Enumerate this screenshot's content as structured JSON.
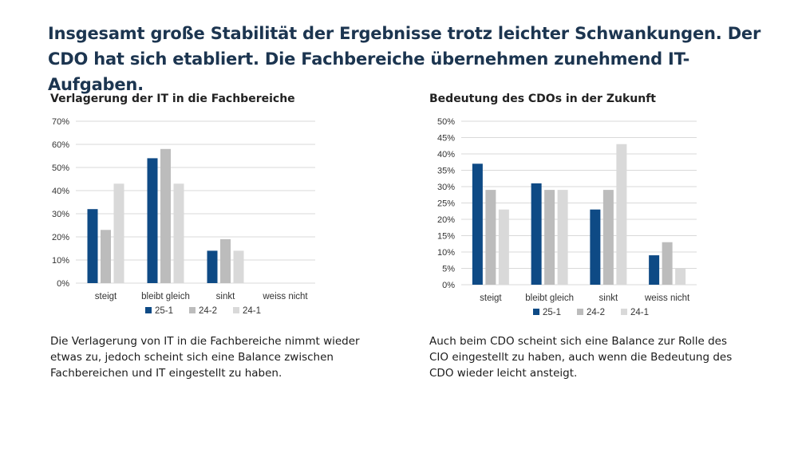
{
  "headline": "Insgesamt große Stabilität der Ergebnisse trotz leichter Schwankungen. Der CDO hat sich etabliert. Die Fachbereiche übernehmen zunehmend IT-Aufgaben.",
  "colors": {
    "25-1": "#0e4a85",
    "24-2": "#bcbcbc",
    "24-1": "#d9d9d9",
    "grid": "#d9d9d9",
    "title": "#1c3550"
  },
  "chart_data": [
    {
      "type": "bar",
      "title": "Verlagerung der IT in die Fachbereiche",
      "categories": [
        "steigt",
        "bleibt gleich",
        "sinkt",
        "weiss nicht"
      ],
      "series": [
        {
          "name": "25-1",
          "values": [
            32,
            54,
            14,
            0
          ]
        },
        {
          "name": "24-2",
          "values": [
            23,
            58,
            19,
            0
          ]
        },
        {
          "name": "24-1",
          "values": [
            43,
            43,
            14,
            0
          ]
        }
      ],
      "ylim": [
        0,
        70
      ],
      "yticks": [
        "0%",
        "10%",
        "20%",
        "30%",
        "40%",
        "50%",
        "60%",
        "70%"
      ],
      "grid": true,
      "legend": "bottom",
      "caption": "Die Verlagerung von IT in die Fachbereiche nimmt wieder etwas zu, jedoch scheint sich eine Balance zwischen Fachbereichen und IT eingestellt zu haben."
    },
    {
      "type": "bar",
      "title": "Bedeutung des CDOs in der Zukunft",
      "categories": [
        "steigt",
        "bleibt gleich",
        "sinkt",
        "weiss nicht"
      ],
      "series": [
        {
          "name": "25-1",
          "values": [
            37,
            31,
            23,
            9
          ]
        },
        {
          "name": "24-2",
          "values": [
            29,
            29,
            29,
            13
          ]
        },
        {
          "name": "24-1",
          "values": [
            23,
            29,
            43,
            5
          ]
        }
      ],
      "ylim": [
        0,
        50
      ],
      "yticks": [
        "0%",
        "5%",
        "10%",
        "15%",
        "20%",
        "25%",
        "30%",
        "35%",
        "40%",
        "45%",
        "50%"
      ],
      "grid": true,
      "legend": "bottom",
      "caption": "Auch beim CDO scheint sich eine Balance zur Rolle des CIO eingestellt zu haben, auch wenn die Bedeutung des CDO wieder leicht ansteigt."
    }
  ]
}
